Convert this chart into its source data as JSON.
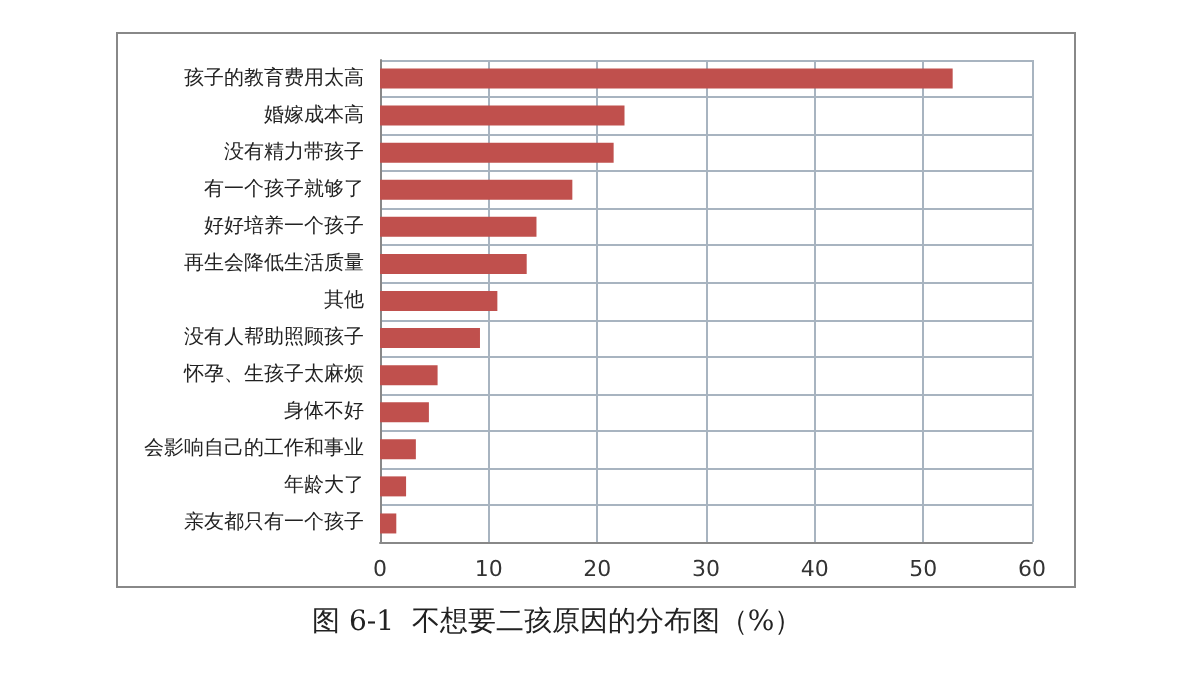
{
  "chart_data": {
    "type": "bar",
    "orientation": "horizontal",
    "categories": [
      "孩子的教育费用太高",
      "婚嫁成本高",
      "没有精力带孩子",
      "有一个孩子就够了",
      "好好培养一个孩子",
      "再生会降低生活质量",
      "其他",
      "没有人帮助照顾孩子",
      "怀孕、生孩子太麻烦",
      "身体不好",
      "会影响自己的工作和事业",
      "年龄大了",
      "亲友都只有一个孩子"
    ],
    "values": [
      52.7,
      22.5,
      21.5,
      17.7,
      14.4,
      13.5,
      10.8,
      9.2,
      5.3,
      4.5,
      3.3,
      2.4,
      1.5
    ],
    "color": "#c0504d",
    "xlim": [
      0,
      60
    ],
    "xticks": [
      0,
      10,
      20,
      30,
      40,
      50,
      60
    ],
    "grid": true,
    "annotations": [
      "图 6-1  不想要二孩原因的分布图（%）"
    ]
  }
}
